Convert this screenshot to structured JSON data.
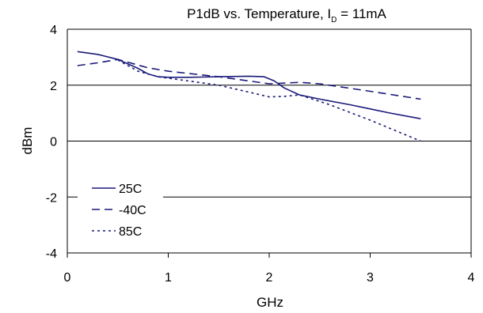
{
  "chart_data": {
    "type": "line",
    "title": {
      "main": "P1dB vs. Temperature, I",
      "subscript": "D",
      "suffix": " = 11mA"
    },
    "xlabel": "GHz",
    "ylabel": "dBm",
    "xlim": [
      0,
      4
    ],
    "ylim": [
      -4,
      4
    ],
    "xticks": [
      0,
      1,
      2,
      3,
      4
    ],
    "yticks": [
      -4,
      -2,
      0,
      2,
      4
    ],
    "grid": "horizontal",
    "legend_position": "lower-left",
    "series": [
      {
        "name": "25C",
        "dash": "solid",
        "color": "#1a1a7a",
        "x": [
          0.1,
          0.3,
          0.5,
          0.7,
          0.8,
          0.9,
          1.0,
          1.2,
          1.5,
          1.8,
          1.95,
          2.05,
          2.15,
          2.3,
          2.5,
          2.8,
          3.0,
          3.2,
          3.5
        ],
        "y": [
          3.2,
          3.1,
          2.92,
          2.6,
          2.4,
          2.3,
          2.28,
          2.28,
          2.3,
          2.32,
          2.3,
          2.15,
          1.9,
          1.65,
          1.5,
          1.3,
          1.15,
          1.0,
          0.8
        ]
      },
      {
        "name": "-40C",
        "dash": "dashed",
        "color": "#1a1a7a",
        "x": [
          0.1,
          0.3,
          0.5,
          0.8,
          1.0,
          1.5,
          2.0,
          2.3,
          2.5,
          3.0,
          3.5
        ],
        "y": [
          2.7,
          2.8,
          2.92,
          2.62,
          2.5,
          2.3,
          2.05,
          2.1,
          2.05,
          1.78,
          1.5
        ]
      },
      {
        "name": "85C",
        "dash": "dotted",
        "color": "#1a1a7a",
        "x": [
          0.5,
          0.7,
          0.9,
          1.2,
          1.5,
          1.8,
          2.0,
          2.15,
          2.3,
          2.6,
          3.0,
          3.2,
          3.5
        ],
        "y": [
          2.9,
          2.5,
          2.3,
          2.15,
          2.0,
          1.75,
          1.58,
          1.6,
          1.65,
          1.3,
          0.75,
          0.45,
          0.0
        ]
      }
    ]
  }
}
